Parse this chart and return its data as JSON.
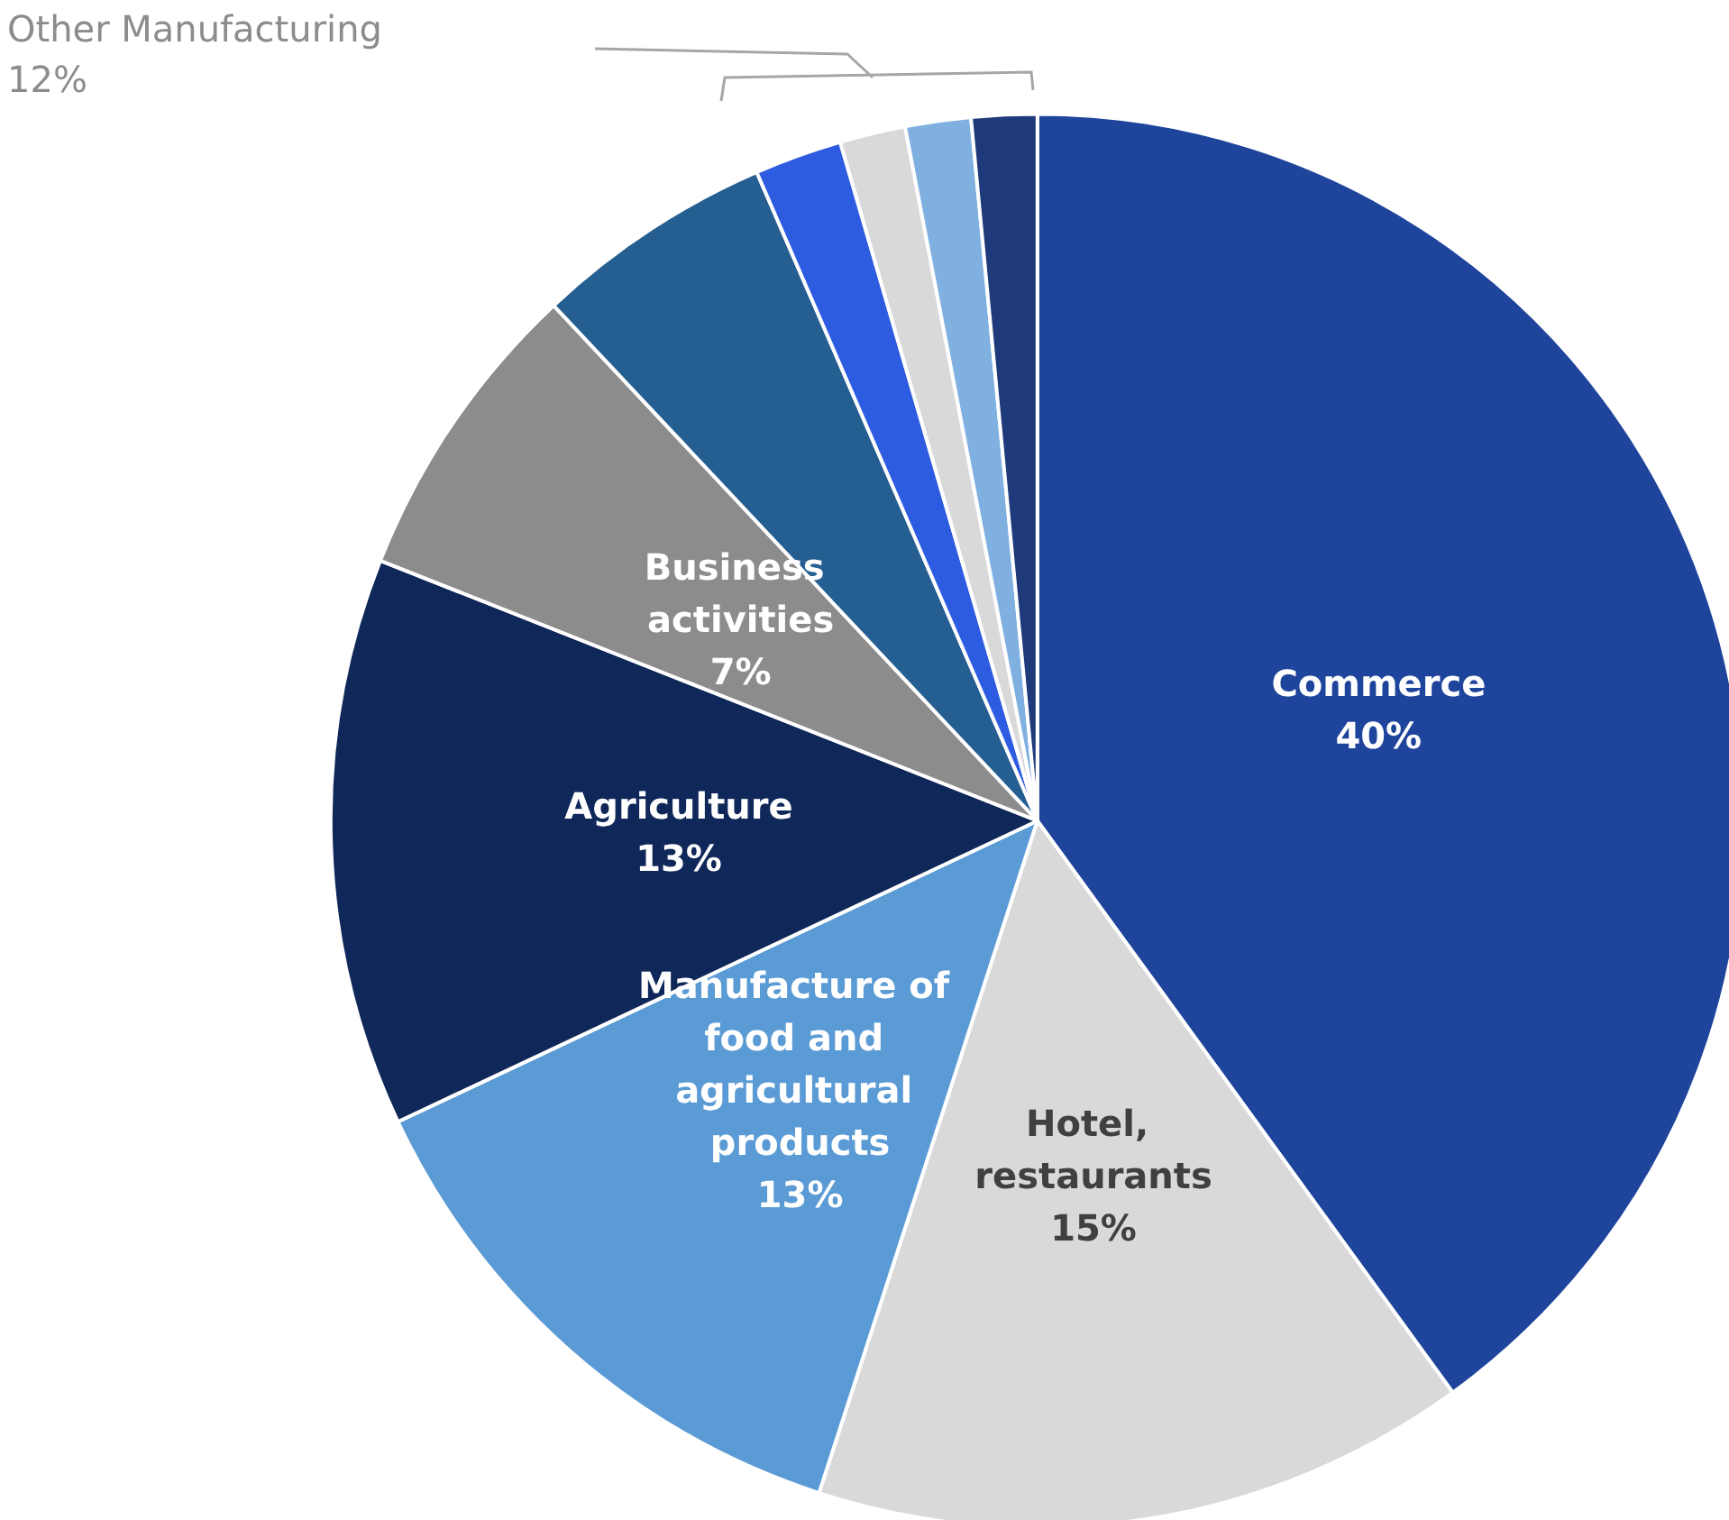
{
  "chart_data": {
    "type": "pie",
    "categories": [
      "Commerce",
      "Hotel, restaurants",
      "Manufacture of food and agricultural products",
      "Agriculture",
      "Business activities",
      null,
      null,
      null,
      null,
      null
    ],
    "values": [
      40,
      15,
      13,
      13,
      7,
      5.5,
      2,
      1.5,
      1.5,
      1.5
    ],
    "value_labels": [
      "40%",
      "15%",
      "13%",
      "13%",
      "7%",
      null,
      null,
      null,
      null,
      null
    ],
    "colors": [
      "#1f449c",
      "#d9d9d9",
      "#5b9bd5",
      "#0f2759",
      "#8c8c8c",
      "#255e91",
      "#2d5ce0",
      "#d9d9d9",
      "#7fb0e0",
      "#1f3a7a"
    ],
    "annotations": [
      "Other Manufacturing\n12%"
    ],
    "legend": false
  }
}
